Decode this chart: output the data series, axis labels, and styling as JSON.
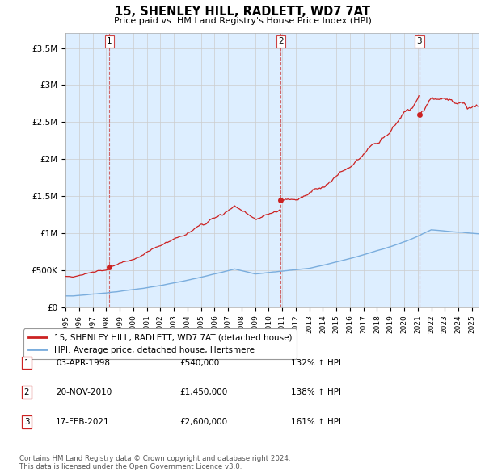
{
  "title": "15, SHENLEY HILL, RADLETT, WD7 7AT",
  "subtitle": "Price paid vs. HM Land Registry's House Price Index (HPI)",
  "ylim": [
    0,
    3700000
  ],
  "yticks": [
    0,
    500000,
    1000000,
    1500000,
    2000000,
    2500000,
    3000000,
    3500000
  ],
  "ytick_labels": [
    "£0",
    "£500K",
    "£1M",
    "£1.5M",
    "£2M",
    "£2.5M",
    "£3M",
    "£3.5M"
  ],
  "xlim_start": 1995.0,
  "xlim_end": 2025.5,
  "sale_dates": [
    1998.25,
    2010.9,
    2021.12
  ],
  "sale_prices": [
    540000,
    1450000,
    2600000
  ],
  "sale_labels": [
    "1",
    "2",
    "3"
  ],
  "hpi_line_color": "#7aaddd",
  "sale_line_color": "#cc2222",
  "marker_color": "#cc2222",
  "vline_color": "#cc4444",
  "grid_color": "#cccccc",
  "chart_bg": "#ddeeff",
  "legend_label_red": "15, SHENLEY HILL, RADLETT, WD7 7AT (detached house)",
  "legend_label_blue": "HPI: Average price, detached house, Hertsmere",
  "table_rows": [
    [
      "1",
      "03-APR-1998",
      "£540,000",
      "132% ↑ HPI"
    ],
    [
      "2",
      "20-NOV-2010",
      "£1,450,000",
      "138% ↑ HPI"
    ],
    [
      "3",
      "17-FEB-2021",
      "£2,600,000",
      "161% ↑ HPI"
    ]
  ],
  "footer": "Contains HM Land Registry data © Crown copyright and database right 2024.\nThis data is licensed under the Open Government Licence v3.0."
}
